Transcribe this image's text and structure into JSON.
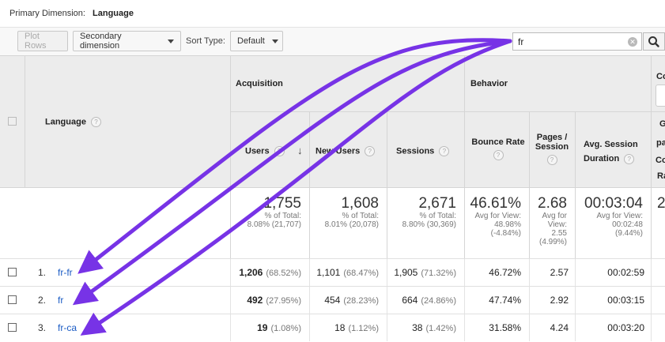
{
  "primary_dimension": {
    "label": "Primary Dimension:",
    "value": "Language"
  },
  "toolbar": {
    "plot_rows": "Plot Rows",
    "secondary_dimension": "Secondary dimension",
    "sort_type_label": "Sort Type:",
    "sort_default": "Default",
    "search_value": "fr",
    "search_icon": "magnifier-icon",
    "clear_icon": "clear-x-icon"
  },
  "header": {
    "language": "Language",
    "acquisition": "Acquisition",
    "behavior": "Behavior",
    "conversions_partial": "Co",
    "users": "Users",
    "new_users": "New Users",
    "sessions": "Sessions",
    "bounce_rate": "Bounce Rate",
    "pages_session": "Pages / Session",
    "avg_session": "Avg. Session Duration",
    "right_partial": [
      "G",
      "pa",
      "Co",
      "Ra"
    ]
  },
  "totals": {
    "users": {
      "value": "1,755",
      "sub1": "% of Total:",
      "sub2": "8.08% (21,707)"
    },
    "new_users": {
      "value": "1,608",
      "sub1": "% of Total:",
      "sub2": "8.01% (20,078)"
    },
    "sessions": {
      "value": "2,671",
      "sub1": "% of Total:",
      "sub2": "8.80% (30,369)"
    },
    "bounce_rate": {
      "value": "46.61%",
      "sub1": "Avg for View:",
      "sub2": "48.98%",
      "sub3": "(-4.84%)"
    },
    "pages_session": {
      "value": "2.68",
      "sub1": "Avg for",
      "sub2": "View:",
      "sub3": "2.55",
      "sub4": "(4.99%)"
    },
    "avg_session": {
      "value": "00:03:04",
      "sub1": "Avg for View:",
      "sub2": "00:02:48",
      "sub3": "(9.44%)"
    },
    "right_partial": "2"
  },
  "rows": [
    {
      "num": "1.",
      "language": "fr-fr",
      "users": "1,206",
      "users_pct": "(68.52%)",
      "new_users": "1,101",
      "new_users_pct": "(68.47%)",
      "sessions": "1,905",
      "sessions_pct": "(71.32%)",
      "bounce": "46.72%",
      "pages": "2.57",
      "duration": "00:02:59"
    },
    {
      "num": "2.",
      "language": "fr",
      "users": "492",
      "users_pct": "(27.95%)",
      "new_users": "454",
      "new_users_pct": "(28.23%)",
      "sessions": "664",
      "sessions_pct": "(24.86%)",
      "bounce": "47.74%",
      "pages": "2.92",
      "duration": "00:03:15"
    },
    {
      "num": "3.",
      "language": "fr-ca",
      "users": "19",
      "users_pct": "(1.08%)",
      "new_users": "18",
      "new_users_pct": "(1.12%)",
      "sessions": "38",
      "sessions_pct": "(1.42%)",
      "bounce": "31.58%",
      "pages": "4.24",
      "duration": "00:03:20"
    }
  ],
  "colors": {
    "arrow": "#7733e6",
    "link": "#1a5bc4",
    "header_bg": "#ececec"
  }
}
